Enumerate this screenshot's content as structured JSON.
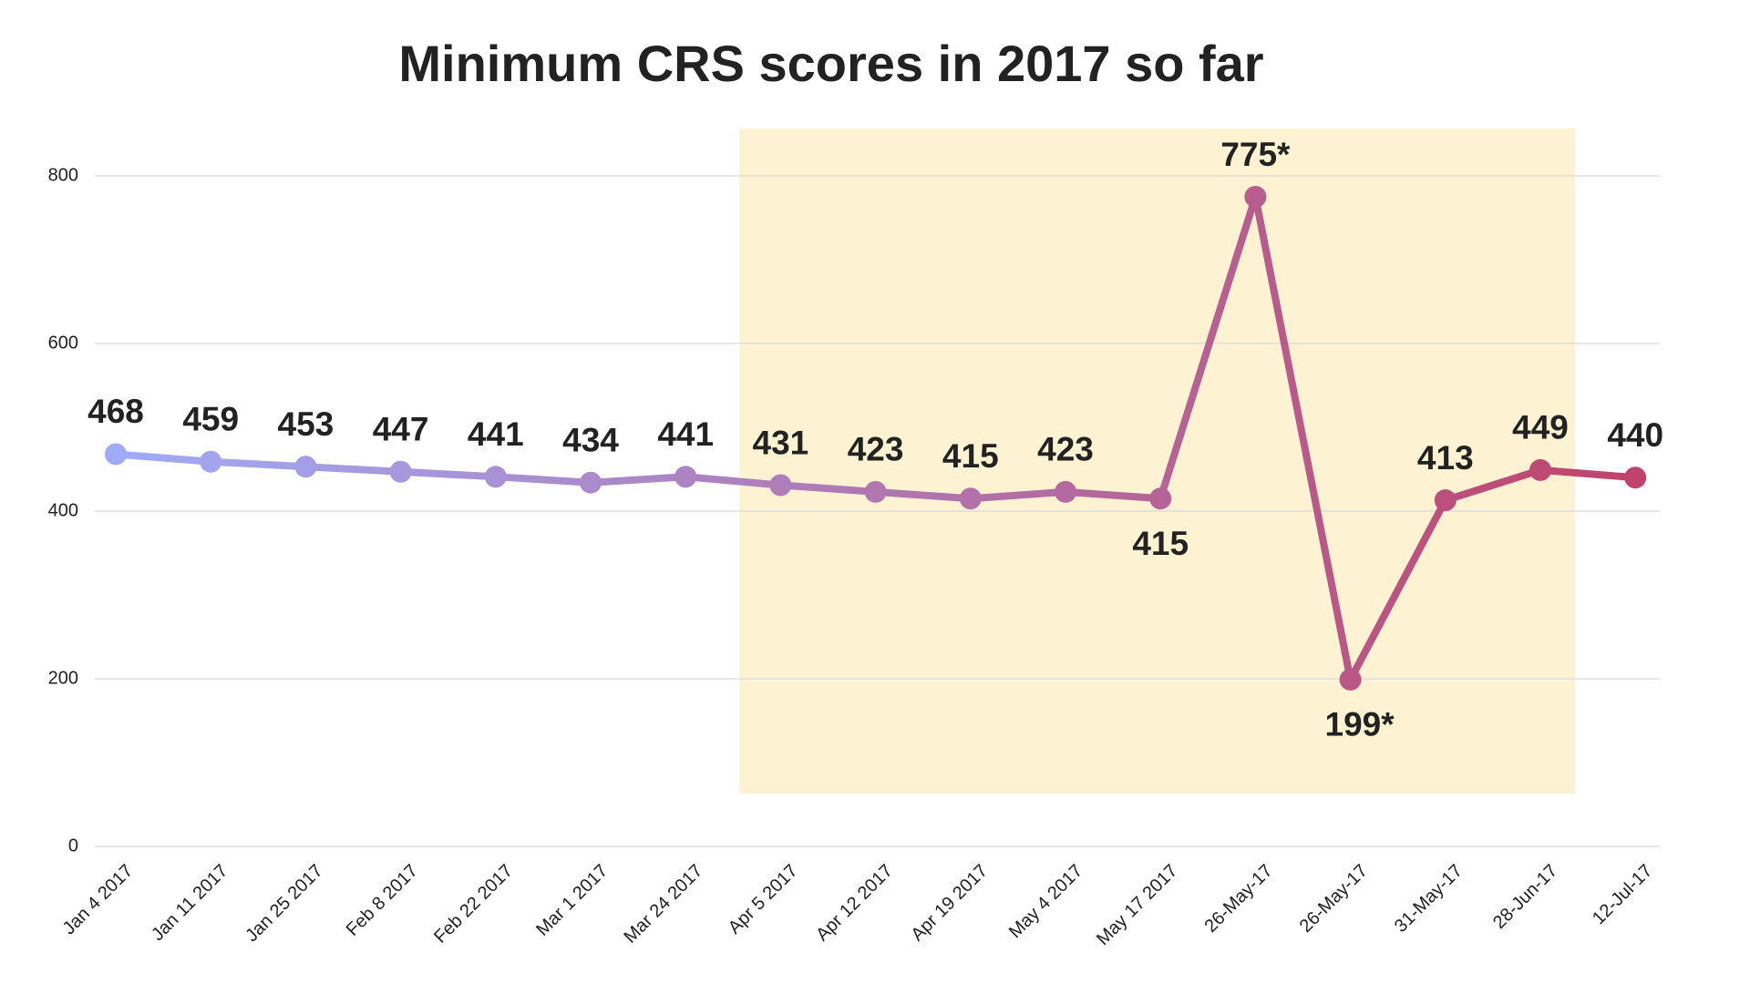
{
  "chart_data": {
    "type": "line",
    "title": "Minimum CRS scores in 2017 so far",
    "categories": [
      "Jan 4 2017",
      "Jan 11 2017",
      "Jan 25 2017",
      "Feb 8 2017",
      "Feb 22 2017",
      "Mar 1 2017",
      "Mar 24 2017",
      "Apr 5 2017",
      "Apr 12 2017",
      "Apr 19 2017",
      "May 4 2017",
      "May 17 2017",
      "26-May-17",
      "26-May-17",
      "31-May-17",
      "28-Jun-17",
      "12-Jul-17"
    ],
    "values": [
      468,
      459,
      453,
      447,
      441,
      434,
      441,
      431,
      423,
      415,
      423,
      415,
      775,
      199,
      413,
      449,
      440
    ],
    "value_labels": [
      "468",
      "459",
      "453",
      "447",
      "441",
      "434",
      "441",
      "431",
      "423",
      "415",
      "423",
      "415",
      "775*",
      "199*",
      "413",
      "449",
      "440"
    ],
    "colors": [
      "#a0abf7",
      "#c0436b"
    ],
    "highlight_color": "#fdf2d2",
    "ylim": [
      0,
      800
    ],
    "yticks": [
      0,
      200,
      400,
      600,
      800
    ],
    "grid": true
  }
}
